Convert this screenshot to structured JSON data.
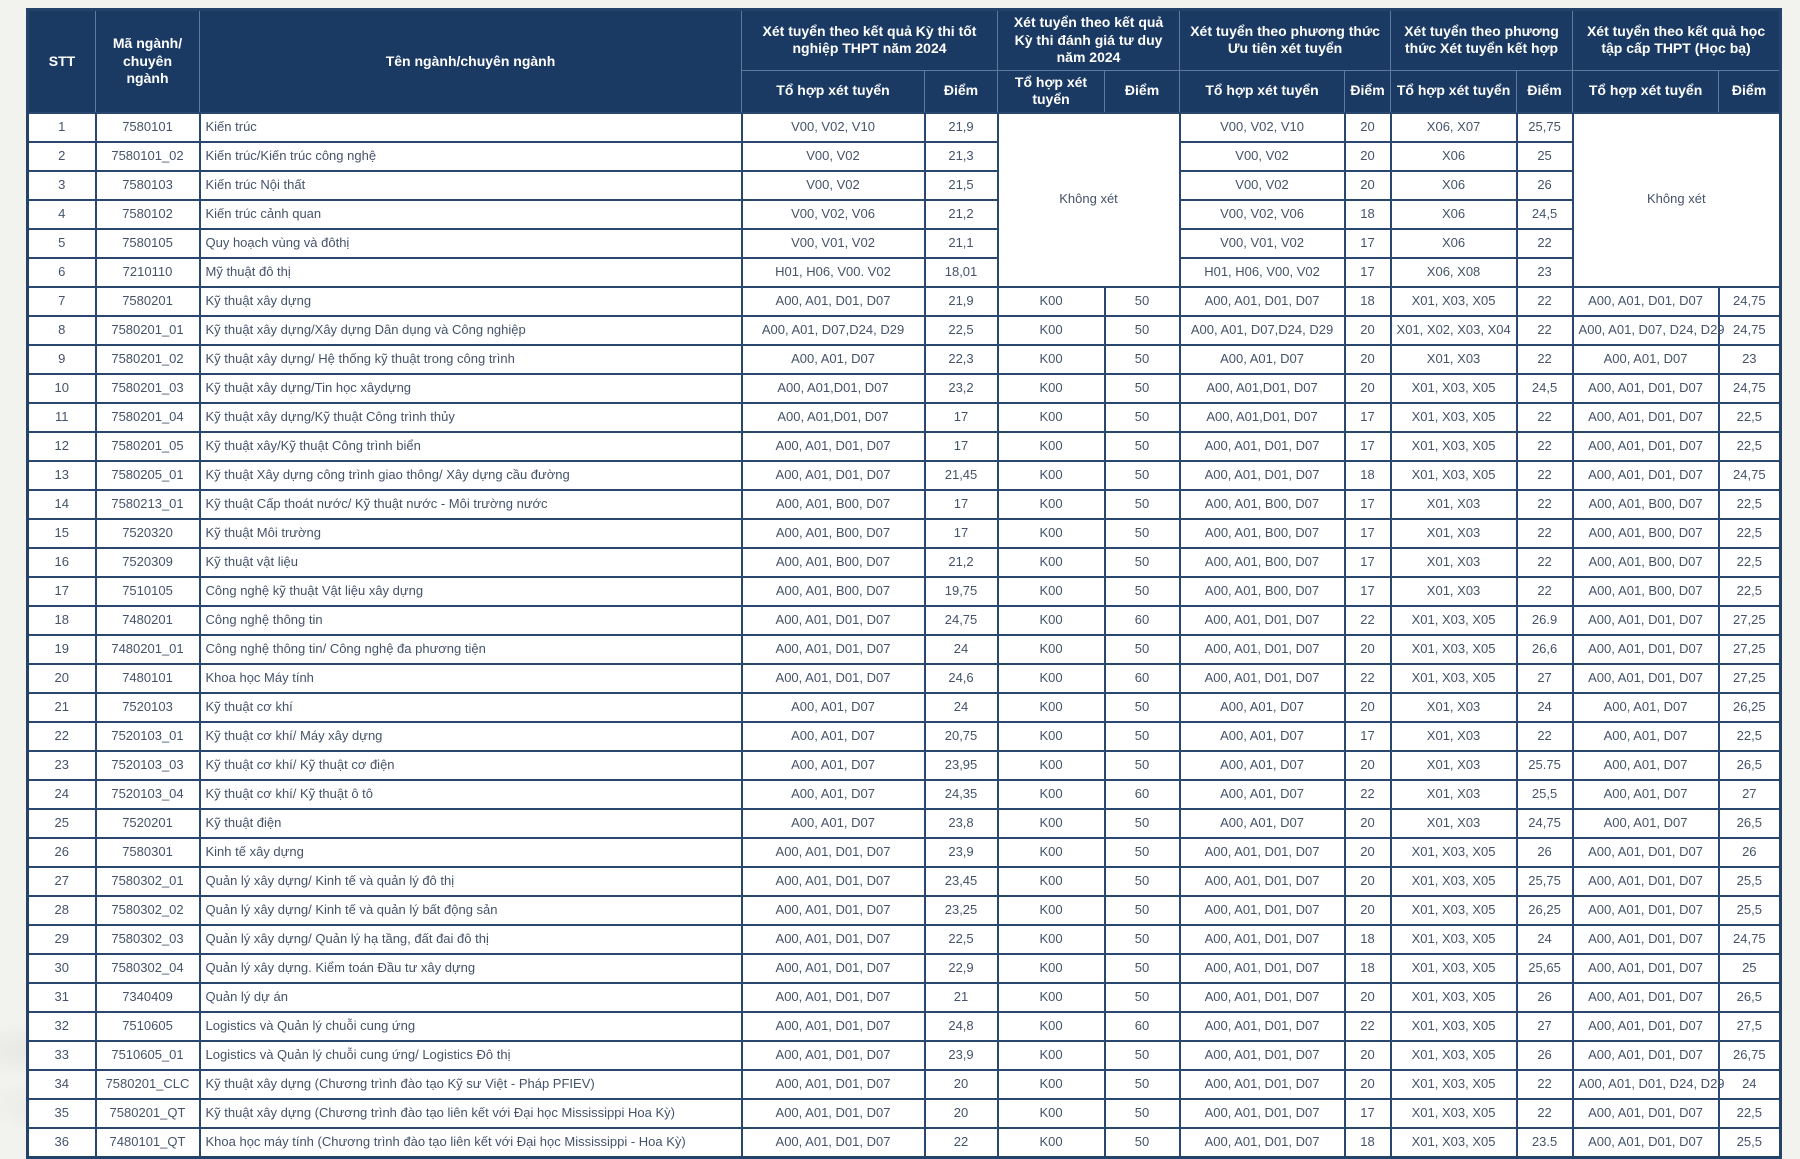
{
  "table": {
    "headers": {
      "stt": "STT",
      "code": "Mã ngành/ chuyên ngành",
      "name": "Tên ngành/chuyên ngành"
    },
    "groups": [
      {
        "label": "Xét tuyển theo kết quả Kỳ thi tốt nghiệp THPT năm 2024"
      },
      {
        "label": "Xét tuyển theo kết quả Kỳ thi đánh giá tư duy năm 2024"
      },
      {
        "label": "Xét tuyển theo phương thức Ưu tiên xét tuyển"
      },
      {
        "label": "Xét tuyển theo phương thức Xét tuyển kết hợp"
      },
      {
        "label": "Xét tuyển theo kết quả học tập cấp THPT (Học bạ)"
      }
    ],
    "sub": {
      "to_hop": "Tổ hợp xét tuyển",
      "diem": "Điểm"
    },
    "merges": {
      "dgtd": {
        "start": 0,
        "span": 6,
        "label": "Không xét"
      },
      "hocba": {
        "start": 0,
        "span": 6,
        "label": "Không xét"
      }
    },
    "colors": {
      "header_bg": "#1a3a64",
      "border": "#24436b",
      "body_text": "#44536a"
    },
    "rows": [
      {
        "stt": "1",
        "code": "7580101",
        "name": "Kiến trúc",
        "thpt": [
          "V00, V02, V10",
          "21,9"
        ],
        "dgtd": null,
        "uti": [
          "V00, V02, V10",
          "20"
        ],
        "kethop": [
          "X06, X07",
          "25,75"
        ],
        "hocba": null
      },
      {
        "stt": "2",
        "code": "7580101_02",
        "name": "Kiến trúc/Kiến trúc công nghệ",
        "thpt": [
          "V00, V02",
          "21,3"
        ],
        "dgtd": null,
        "uti": [
          "V00, V02",
          "20"
        ],
        "kethop": [
          "X06",
          "25"
        ],
        "hocba": null
      },
      {
        "stt": "3",
        "code": "7580103",
        "name": "Kiến trúc Nội thất",
        "thpt": [
          "V00, V02",
          "21,5"
        ],
        "dgtd": null,
        "uti": [
          "V00, V02",
          "20"
        ],
        "kethop": [
          "X06",
          "26"
        ],
        "hocba": null
      },
      {
        "stt": "4",
        "code": "7580102",
        "name": "Kiến trúc cảnh quan",
        "thpt": [
          "V00, V02, V06",
          "21,2"
        ],
        "dgtd": null,
        "uti": [
          "V00, V02, V06",
          "18"
        ],
        "kethop": [
          "X06",
          "24,5"
        ],
        "hocba": null
      },
      {
        "stt": "5",
        "code": "7580105",
        "name": "Quy hoạch vùng và đôthị",
        "thpt": [
          "V00, V01, V02",
          "21,1"
        ],
        "dgtd": null,
        "uti": [
          "V00, V01, V02",
          "17"
        ],
        "kethop": [
          "X06",
          "22"
        ],
        "hocba": null
      },
      {
        "stt": "6",
        "code": "7210110",
        "name": "Mỹ thuật đô thị",
        "thpt": [
          "H01, H06, V00. V02",
          "18,01"
        ],
        "dgtd": null,
        "uti": [
          "H01, H06, V00, V02",
          "17"
        ],
        "kethop": [
          "X06, X08",
          "23"
        ],
        "hocba": null
      },
      {
        "stt": "7",
        "code": "7580201",
        "name": "Kỹ thuật xây dựng",
        "thpt": [
          "A00, A01, D01, D07",
          "21,9"
        ],
        "dgtd": [
          "K00",
          "50"
        ],
        "uti": [
          "A00, A01, D01, D07",
          "18"
        ],
        "kethop": [
          "X01, X03, X05",
          "22"
        ],
        "hocba": [
          "A00, A01, D01, D07",
          "24,75"
        ]
      },
      {
        "stt": "8",
        "code": "7580201_01",
        "name": "Kỹ thuật xây dựng/Xây dựng Dân dụng và Công nghiệp",
        "thpt": [
          "A00, A01, D07,D24, D29",
          "22,5"
        ],
        "dgtd": [
          "K00",
          "50"
        ],
        "uti": [
          "A00, A01, D07,D24, D29",
          "20"
        ],
        "kethop": [
          "X01, X02, X03, X04",
          "22"
        ],
        "hocba": [
          "A00, A01, D07, D24, D29",
          "24,75"
        ]
      },
      {
        "stt": "9",
        "code": "7580201_02",
        "name": "Kỹ thuật xây dựng/ Hệ thống kỹ thuật trong công trình",
        "thpt": [
          "A00, A01, D07",
          "22,3"
        ],
        "dgtd": [
          "K00",
          "50"
        ],
        "uti": [
          "A00, A01, D07",
          "20"
        ],
        "kethop": [
          "X01, X03",
          "22"
        ],
        "hocba": [
          "A00, A01, D07",
          "23"
        ]
      },
      {
        "stt": "10",
        "code": "7580201_03",
        "name": "Kỹ thuật xây dựng/Tin học xâydựng",
        "thpt": [
          "A00, A01,D01, D07",
          "23,2"
        ],
        "dgtd": [
          "K00",
          "50"
        ],
        "uti": [
          "A00, A01,D01, D07",
          "20"
        ],
        "kethop": [
          "X01, X03, X05",
          "24,5"
        ],
        "hocba": [
          "A00, A01, D01, D07",
          "24,75"
        ]
      },
      {
        "stt": "11",
        "code": "7580201_04",
        "name": "Kỹ thuật xây dựng/Kỹ thuật Công trình thủy",
        "thpt": [
          "A00, A01,D01, D07",
          "17"
        ],
        "dgtd": [
          "K00",
          "50"
        ],
        "uti": [
          "A00, A01,D01, D07",
          "17"
        ],
        "kethop": [
          "X01, X03, X05",
          "22"
        ],
        "hocba": [
          "A00, A01, D01, D07",
          "22,5"
        ]
      },
      {
        "stt": "12",
        "code": "7580201_05",
        "name": "Kỹ thuật xây/Kỹ thuật Công trình biển",
        "thpt": [
          "A00, A01, D01, D07",
          "17"
        ],
        "dgtd": [
          "K00",
          "50"
        ],
        "uti": [
          "A00, A01, D01, D07",
          "17"
        ],
        "kethop": [
          "X01, X03, X05",
          "22"
        ],
        "hocba": [
          "A00, A01, D01, D07",
          "22,5"
        ]
      },
      {
        "stt": "13",
        "code": "7580205_01",
        "name": "Kỹ thuật Xây dựng công trình giao thông/ Xây dựng cầu đường",
        "thpt": [
          "A00, A01, D01, D07",
          "21,45"
        ],
        "dgtd": [
          "K00",
          "50"
        ],
        "uti": [
          "A00, A01, D01, D07",
          "18"
        ],
        "kethop": [
          "X01, X03, X05",
          "22"
        ],
        "hocba": [
          "A00, A01, D01, D07",
          "24,75"
        ]
      },
      {
        "stt": "14",
        "code": "7580213_01",
        "name": "Kỹ thuật Cấp thoát nước/ Kỹ thuật nước - Môi trường nước",
        "thpt": [
          "A00, A01, B00, D07",
          "17"
        ],
        "dgtd": [
          "K00",
          "50"
        ],
        "uti": [
          "A00, A01, B00, D07",
          "17"
        ],
        "kethop": [
          "X01, X03",
          "22"
        ],
        "hocba": [
          "A00, A01, B00, D07",
          "22,5"
        ]
      },
      {
        "stt": "15",
        "code": "7520320",
        "name": "Kỹ thuật Môi trường",
        "thpt": [
          "A00, A01, B00, D07",
          "17"
        ],
        "dgtd": [
          "K00",
          "50"
        ],
        "uti": [
          "A00, A01, B00, D07",
          "17"
        ],
        "kethop": [
          "X01, X03",
          "22"
        ],
        "hocba": [
          "A00, A01, B00, D07",
          "22,5"
        ]
      },
      {
        "stt": "16",
        "code": "7520309",
        "name": "Kỹ thuật vật liệu",
        "thpt": [
          "A00, A01, B00, D07",
          "21,2"
        ],
        "dgtd": [
          "K00",
          "50"
        ],
        "uti": [
          "A00, A01, B00, D07",
          "17"
        ],
        "kethop": [
          "X01, X03",
          "22"
        ],
        "hocba": [
          "A00, A01, B00, D07",
          "22,5"
        ]
      },
      {
        "stt": "17",
        "code": "7510105",
        "name": "Công nghệ kỹ thuật Vật liệu xây dựng",
        "thpt": [
          "A00, A01, B00, D07",
          "19,75"
        ],
        "dgtd": [
          "K00",
          "50"
        ],
        "uti": [
          "A00, A01, B00, D07",
          "17"
        ],
        "kethop": [
          "X01, X03",
          "22"
        ],
        "hocba": [
          "A00, A01, B00, D07",
          "22,5"
        ]
      },
      {
        "stt": "18",
        "code": "7480201",
        "name": "Công nghệ thông tin",
        "thpt": [
          "A00, A01, D01, D07",
          "24,75"
        ],
        "dgtd": [
          "K00",
          "60"
        ],
        "uti": [
          "A00, A01, D01, D07",
          "22"
        ],
        "kethop": [
          "X01, X03, X05",
          "26.9"
        ],
        "hocba": [
          "A00, A01, D01, D07",
          "27,25"
        ]
      },
      {
        "stt": "19",
        "code": "7480201_01",
        "name": "Công nghệ thông tin/ Công nghệ đa phương tiện",
        "thpt": [
          "A00, A01, D01, D07",
          "24"
        ],
        "dgtd": [
          "K00",
          "50"
        ],
        "uti": [
          "A00, A01, D01, D07",
          "20"
        ],
        "kethop": [
          "X01, X03, X05",
          "26,6"
        ],
        "hocba": [
          "A00, A01, D01, D07",
          "27,25"
        ]
      },
      {
        "stt": "20",
        "code": "7480101",
        "name": "Khoa học Máy tính",
        "thpt": [
          "A00, A01, D01, D07",
          "24,6"
        ],
        "dgtd": [
          "K00",
          "60"
        ],
        "uti": [
          "A00, A01, D01, D07",
          "22"
        ],
        "kethop": [
          "X01, X03, X05",
          "27"
        ],
        "hocba": [
          "A00, A01, D01, D07",
          "27,25"
        ]
      },
      {
        "stt": "21",
        "code": "7520103",
        "name": "Kỹ thuật cơ khí",
        "thpt": [
          "A00, A01, D07",
          "24"
        ],
        "dgtd": [
          "K00",
          "50"
        ],
        "uti": [
          "A00, A01, D07",
          "20"
        ],
        "kethop": [
          "X01, X03",
          "24"
        ],
        "hocba": [
          "A00, A01, D07",
          "26,25"
        ]
      },
      {
        "stt": "22",
        "code": "7520103_01",
        "name": "Kỹ thuật cơ khí/ Máy xây dựng",
        "thpt": [
          "A00, A01, D07",
          "20,75"
        ],
        "dgtd": [
          "K00",
          "50"
        ],
        "uti": [
          "A00, A01, D07",
          "17"
        ],
        "kethop": [
          "X01, X03",
          "22"
        ],
        "hocba": [
          "A00, A01, D07",
          "22,5"
        ]
      },
      {
        "stt": "23",
        "code": "7520103_03",
        "name": "Kỹ thuật cơ khí/ Kỹ thuật cơ điện",
        "thpt": [
          "A00, A01, D07",
          "23,95"
        ],
        "dgtd": [
          "K00",
          "50"
        ],
        "uti": [
          "A00, A01, D07",
          "20"
        ],
        "kethop": [
          "X01, X03",
          "25.75"
        ],
        "hocba": [
          "A00, A01, D07",
          "26,5"
        ]
      },
      {
        "stt": "24",
        "code": "7520103_04",
        "name": "Kỹ thuật cơ khí/ Kỹ thuật ô tô",
        "thpt": [
          "A00, A01, D07",
          "24,35"
        ],
        "dgtd": [
          "K00",
          "60"
        ],
        "uti": [
          "A00, A01, D07",
          "22"
        ],
        "kethop": [
          "X01, X03",
          "25,5"
        ],
        "hocba": [
          "A00, A01, D07",
          "27"
        ]
      },
      {
        "stt": "25",
        "code": "7520201",
        "name": "Kỹ thuật điện",
        "thpt": [
          "A00, A01, D07",
          "23,8"
        ],
        "dgtd": [
          "K00",
          "50"
        ],
        "uti": [
          "A00, A01, D07",
          "20"
        ],
        "kethop": [
          "X01, X03",
          "24,75"
        ],
        "hocba": [
          "A00, A01, D07",
          "26,5"
        ]
      },
      {
        "stt": "26",
        "code": "7580301",
        "name": "Kinh tế xây dựng",
        "thpt": [
          "A00, A01, D01, D07",
          "23,9"
        ],
        "dgtd": [
          "K00",
          "50"
        ],
        "uti": [
          "A00, A01, D01, D07",
          "20"
        ],
        "kethop": [
          "X01, X03, X05",
          "26"
        ],
        "hocba": [
          "A00, A01, D01, D07",
          "26"
        ]
      },
      {
        "stt": "27",
        "code": "7580302_01",
        "name": "Quản lý xây dựng/ Kinh tế và quản lý đô thị",
        "thpt": [
          "A00, A01, D01, D07",
          "23,45"
        ],
        "dgtd": [
          "K00",
          "50"
        ],
        "uti": [
          "A00, A01, D01, D07",
          "20"
        ],
        "kethop": [
          "X01, X03, X05",
          "25,75"
        ],
        "hocba": [
          "A00, A01, D01, D07",
          "25,5"
        ]
      },
      {
        "stt": "28",
        "code": "7580302_02",
        "name": "Quản lý xây dựng/ Kinh tế và quản lý bất động sản",
        "thpt": [
          "A00, A01, D01, D07",
          "23,25"
        ],
        "dgtd": [
          "K00",
          "50"
        ],
        "uti": [
          "A00, A01, D01, D07",
          "20"
        ],
        "kethop": [
          "X01, X03, X05",
          "26,25"
        ],
        "hocba": [
          "A00, A01, D01, D07",
          "25,5"
        ]
      },
      {
        "stt": "29",
        "code": "7580302_03",
        "name": "Quản lý xây dựng/ Quản lý hạ tầng, đất đai đô thị",
        "thpt": [
          "A00, A01, D01, D07",
          "22,5"
        ],
        "dgtd": [
          "K00",
          "50"
        ],
        "uti": [
          "A00, A01, D01, D07",
          "18"
        ],
        "kethop": [
          "X01, X03, X05",
          "24"
        ],
        "hocba": [
          "A00, A01, D01, D07",
          "24,75"
        ]
      },
      {
        "stt": "30",
        "code": "7580302_04",
        "name": "Quản lý xây dựng. Kiểm toán Đầu tư xây dựng",
        "thpt": [
          "A00, A01, D01, D07",
          "22,9"
        ],
        "dgtd": [
          "K00",
          "50"
        ],
        "uti": [
          "A00, A01, D01, D07",
          "18"
        ],
        "kethop": [
          "X01, X03, X05",
          "25,65"
        ],
        "hocba": [
          "A00, A01, D01, D07",
          "25"
        ]
      },
      {
        "stt": "31",
        "code": "7340409",
        "name": "Quản lý dự án",
        "thpt": [
          "A00, A01, D01, D07",
          "21"
        ],
        "dgtd": [
          "K00",
          "50"
        ],
        "uti": [
          "A00, A01, D01, D07",
          "20"
        ],
        "kethop": [
          "X01, X03, X05",
          "26"
        ],
        "hocba": [
          "A00, A01, D01, D07",
          "26,5"
        ]
      },
      {
        "stt": "32",
        "code": "7510605",
        "name": "Logistics và Quản lý chuỗi cung ứng",
        "thpt": [
          "A00, A01, D01, D07",
          "24,8"
        ],
        "dgtd": [
          "K00",
          "60"
        ],
        "uti": [
          "A00, A01, D01, D07",
          "22"
        ],
        "kethop": [
          "X01, X03, X05",
          "27"
        ],
        "hocba": [
          "A00, A01, D01, D07",
          "27,5"
        ]
      },
      {
        "stt": "33",
        "code": "7510605_01",
        "name": "Logistics và Quản lý chuỗi cung ứng/ Logistics Đô thị",
        "thpt": [
          "A00, A01, D01, D07",
          "23,9"
        ],
        "dgtd": [
          "K00",
          "50"
        ],
        "uti": [
          "A00, A01, D01, D07",
          "20"
        ],
        "kethop": [
          "X01, X03, X05",
          "26"
        ],
        "hocba": [
          "A00, A01, D01, D07",
          "26,75"
        ]
      },
      {
        "stt": "34",
        "code": "7580201_CLC",
        "name": "Kỹ thuật xây dựng (Chương trình đào tạo Kỹ sư Việt - Pháp PFIEV)",
        "thpt": [
          "A00, A01, D01, D07",
          "20"
        ],
        "dgtd": [
          "K00",
          "50"
        ],
        "uti": [
          "A00, A01, D01, D07",
          "20"
        ],
        "kethop": [
          "X01, X03, X05",
          "22"
        ],
        "hocba": [
          "A00, A01, D01, D24, D29",
          "24"
        ]
      },
      {
        "stt": "35",
        "code": "7580201_QT",
        "name": "Kỹ thuật xây dựng (Chương trình đào tạo liên kết với Đại học Mississippi Hoa Kỳ)",
        "thpt": [
          "A00, A01, D01, D07",
          "20"
        ],
        "dgtd": [
          "K00",
          "50"
        ],
        "uti": [
          "A00, A01, D01, D07",
          "17"
        ],
        "kethop": [
          "X01, X03, X05",
          "22"
        ],
        "hocba": [
          "A00, A01, D01, D07",
          "22,5"
        ]
      },
      {
        "stt": "36",
        "code": "7480101_QT",
        "name": "Khoa học máy tính (Chương trình đào tạo liên kết với Đại học Mississippi - Hoa Kỳ)",
        "thpt": [
          "A00, A01, D01, D07",
          "22"
        ],
        "dgtd": [
          "K00",
          "50"
        ],
        "uti": [
          "A00, A01, D01, D07",
          "18"
        ],
        "kethop": [
          "X01, X03, X05",
          "23.5"
        ],
        "hocba": [
          "A00, A01, D01, D07",
          "25,5"
        ]
      }
    ]
  }
}
